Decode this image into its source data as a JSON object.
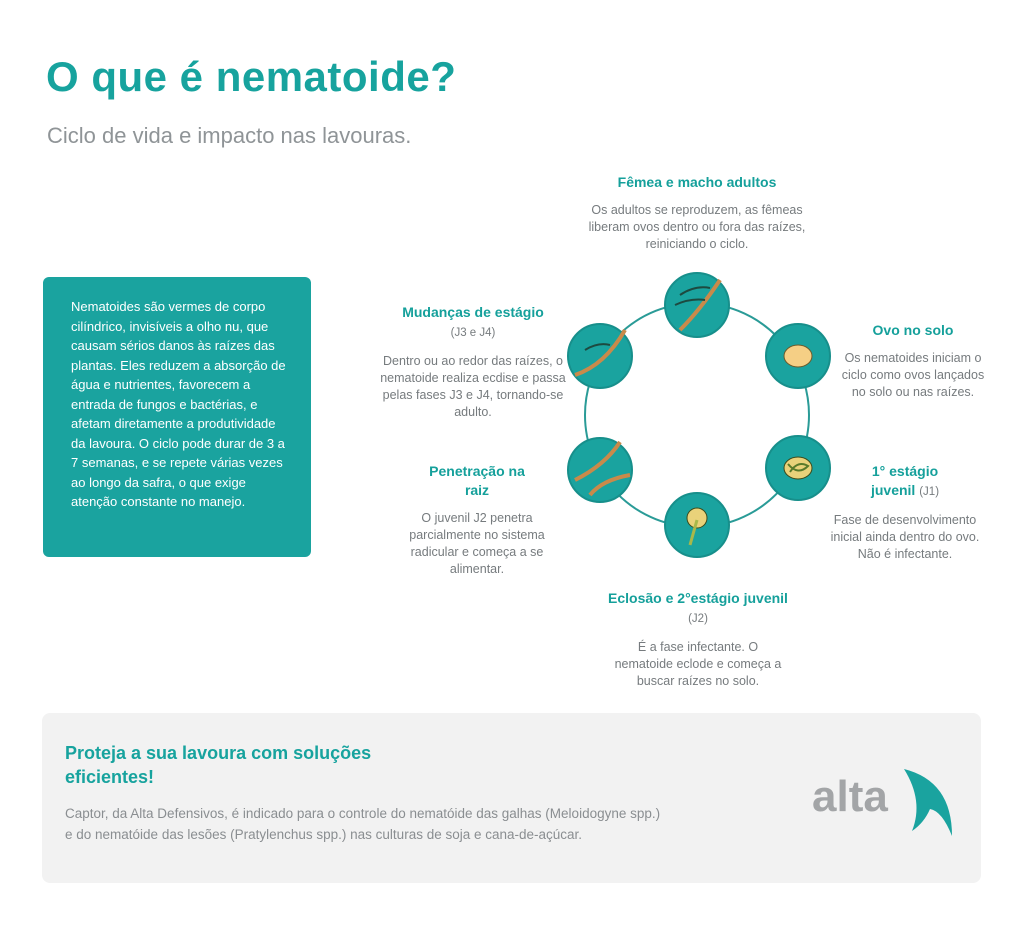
{
  "title": "O que é nematoide?",
  "subtitle": "Ciclo de vida e impacto nas lavouras.",
  "intro": "Nematoides são vermes de corpo cilíndrico, invisíveis a olho nu, que causam sérios danos às raízes das plantas. Eles reduzem a absorção de água e nutrientes, favorecem a entrada de fungos e bactérias, e afetam diretamente a produtividade da lavoura. O ciclo pode durar de 3 a 7 semanas, e se repete várias vezes ao longo da safra, o que exige atenção constante no manejo.",
  "stages": [
    {
      "title": "Fêmea e macho adultos",
      "tag": "",
      "desc": "Os adultos se reproduzem, as fêmeas liberam ovos dentro ou fora das raízes, reiniciando o ciclo."
    },
    {
      "title": "Ovo no solo",
      "tag": "",
      "desc": "Os nematoides iniciam o ciclo como ovos lançados no solo ou nas raízes."
    },
    {
      "title": "1° estágio juvenil",
      "tag": "(J1)",
      "desc": "Fase de desenvolvimento inicial ainda dentro do ovo. Não é infectante."
    },
    {
      "title": "Eclosão e 2°estágio juvenil",
      "tag": "(J2)",
      "desc": "É a fase infectante. O nematoide eclode e começa a buscar raízes no solo."
    },
    {
      "title": "Penetração na raiz",
      "tag": "",
      "desc": "O juvenil J2 penetra parcialmente no sistema radicular e começa a se alimentar."
    },
    {
      "title": "Mudanças de estágio",
      "tag": "(J3 e J4)",
      "desc": "Dentro ou ao redor das raízes, o nematoide realiza ecdise e passa pelas fases J3 e J4, tornando-se adulto."
    }
  ],
  "cta": {
    "title": "Proteja a sua lavoura com soluções eficientes!",
    "desc": "Captor, da Alta Defensivos, é indicado para o controle do nematóide das galhas (Meloidogyne spp.) e do nematóide das lesões (Pratylenchus spp.) nas culturas de soja e cana-de-açúcar.",
    "logo": "alta"
  },
  "colors": {
    "teal": "#1aa39f",
    "root": "#c98a4a",
    "egg": "#f5cf85"
  }
}
